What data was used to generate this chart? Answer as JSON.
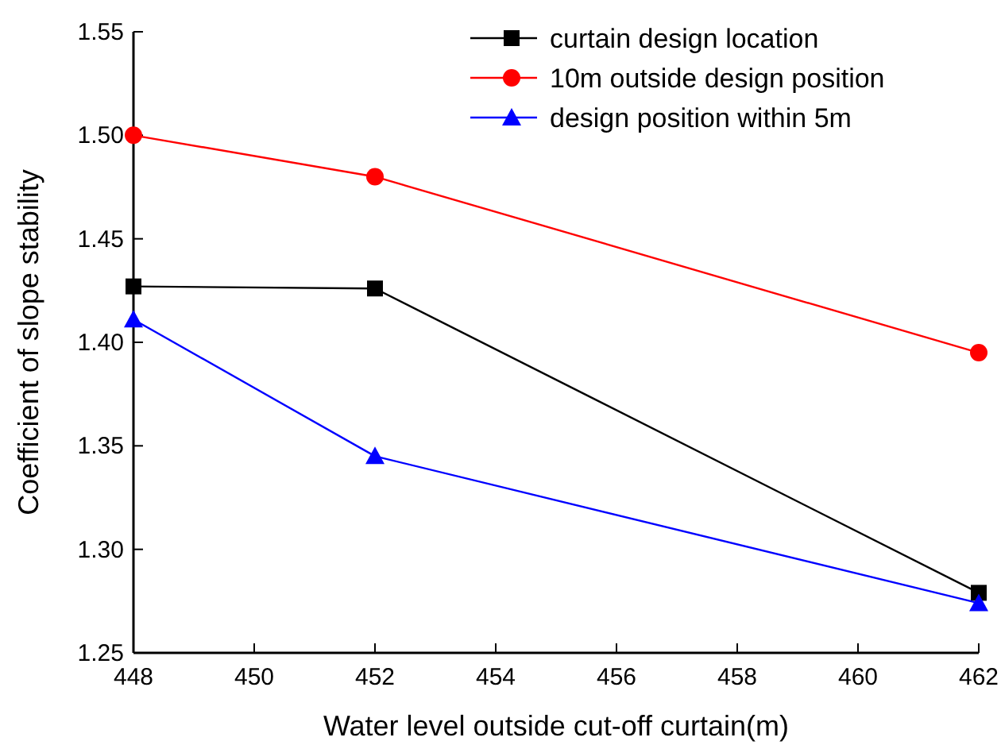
{
  "chart_data": {
    "type": "line",
    "xlabel": "Water level outside cut-off curtain(m)",
    "ylabel": "Coefficient of slope stability",
    "x": [
      448,
      452,
      462
    ],
    "series": [
      {
        "name": "curtain design location",
        "color": "#000000",
        "marker": "square",
        "values": [
          1.427,
          1.426,
          1.279
        ]
      },
      {
        "name": "10m outside design position",
        "color": "#ff0000",
        "marker": "circle",
        "values": [
          1.5,
          1.48,
          1.395
        ]
      },
      {
        "name": "design position within 5m",
        "color": "#0000ff",
        "marker": "triangle",
        "values": [
          1.411,
          1.345,
          1.274
        ]
      }
    ],
    "xlim": [
      448,
      462
    ],
    "xticks": [
      448,
      450,
      452,
      454,
      456,
      458,
      460,
      462
    ],
    "ylim": [
      1.25,
      1.55
    ],
    "yticks": [
      {
        "value": 1.25,
        "label": "1.25"
      },
      {
        "value": 1.3,
        "label": "1.30"
      },
      {
        "value": 1.35,
        "label": "1.35"
      },
      {
        "value": 1.4,
        "label": "1.40"
      },
      {
        "value": 1.45,
        "label": "1.45"
      },
      {
        "value": 1.5,
        "label": "1.50"
      },
      {
        "value": 1.55,
        "label": "1.55"
      }
    ],
    "grid": false,
    "legend": "top right",
    "line_style": "solid"
  }
}
